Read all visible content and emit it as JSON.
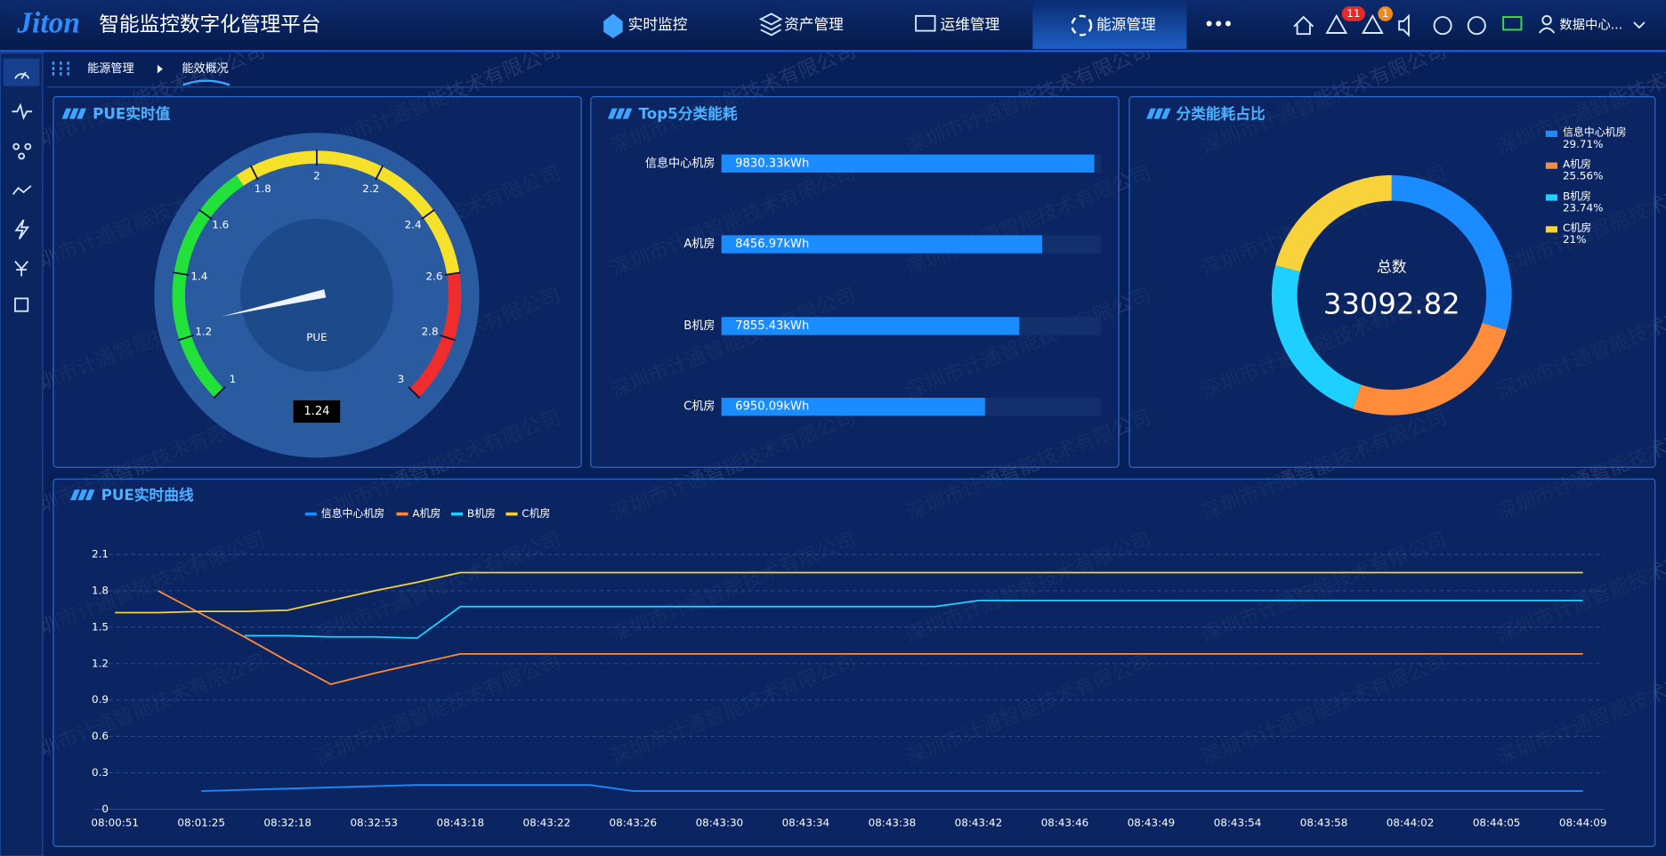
{
  "header": {
    "logo": "Jiton",
    "title": "智能监控数字化管理平台",
    "nav": [
      "实时监控",
      "资产管理",
      "运维管理",
      "能源管理"
    ],
    "more": "•••",
    "badges": [
      11,
      1
    ],
    "user": "数据中心..."
  },
  "breadcrumb": [
    "能源管理",
    "能效概况"
  ],
  "watermark": "深圳市计通智能技术有限公司",
  "chart_data": [
    {
      "type": "gauge",
      "title": "PUE实时值",
      "label": "PUE",
      "value": 1.24,
      "range": [
        1,
        3
      ],
      "ticks": [
        1,
        1.2,
        1.4,
        1.6,
        1.8,
        2,
        2.2,
        2.4,
        2.6,
        2.8,
        3
      ],
      "bands": [
        {
          "to": 1.75,
          "color": "#22e23a"
        },
        {
          "to": 2.6,
          "color": "#f5e12a"
        },
        {
          "to": 3,
          "color": "#f02d2d"
        }
      ]
    },
    {
      "type": "bar",
      "orientation": "horizontal",
      "title": "Top5分类能耗",
      "categories": [
        "信息中心机房",
        "A机房",
        "B机房",
        "C机房"
      ],
      "values": [
        9830.33,
        8456.97,
        7855.43,
        6950.09
      ],
      "value_labels": [
        "9830.33kWh",
        "8456.97kWh",
        "7855.43kWh",
        "6950.09kWh"
      ],
      "xlim": [
        0,
        10000
      ],
      "color": "#1a8cff",
      "track_color": "#14306c"
    },
    {
      "type": "pie",
      "title": "分类能耗占比",
      "categories": [
        "信息中心机房",
        "A机房",
        "B机房",
        "C机房"
      ],
      "values": [
        29.71,
        25.56,
        23.74,
        21
      ],
      "value_labels": [
        "29.71%",
        "25.56%",
        "23.74%",
        "21%"
      ],
      "colors": [
        "#1a8cff",
        "#ff8c3a",
        "#1ed0ff",
        "#f7d23a"
      ],
      "center_label": "总数",
      "total": 33092.82,
      "legend": "top-right"
    },
    {
      "type": "line",
      "title": "PUE实时曲线",
      "categories": [
        "08:00:51",
        null,
        "08:01:25",
        null,
        "08:32:18",
        null,
        "08:32:53",
        null,
        "08:43:18",
        null,
        "08:43:22",
        null,
        "08:43:26",
        null,
        "08:43:30",
        null,
        "08:43:34",
        null,
        "08:43:38",
        null,
        "08:43:42",
        null,
        "08:43:46",
        null,
        "08:43:49",
        null,
        "08:43:54",
        null,
        "08:43:58",
        null,
        "08:44:02",
        null,
        "08:44:05",
        null,
        "08:44:09"
      ],
      "series": [
        {
          "name": "信息中心机房",
          "color": "#1a8cff",
          "values": [
            null,
            null,
            0.15,
            0.16,
            0.17,
            0.18,
            0.19,
            0.2,
            0.2,
            0.2,
            0.2,
            0.2,
            0.15,
            0.15,
            0.15,
            0.15,
            0.15,
            0.15,
            0.15,
            0.15,
            0.15,
            0.15,
            0.15,
            0.15,
            0.15,
            0.15,
            0.15,
            0.15,
            0.15,
            0.15,
            0.15,
            0.15,
            0.15,
            0.15,
            0.15
          ]
        },
        {
          "name": "A机房",
          "color": "#ff8c3a",
          "values": [
            null,
            1.8,
            1.61,
            1.42,
            1.22,
            1.03,
            1.12,
            1.2,
            1.28,
            1.28,
            1.28,
            1.28,
            1.28,
            1.28,
            1.28,
            1.28,
            1.28,
            1.28,
            1.28,
            1.28,
            1.28,
            1.28,
            1.28,
            1.28,
            1.28,
            1.28,
            1.28,
            1.28,
            1.28,
            1.28,
            1.28,
            1.28,
            1.28,
            1.28,
            1.28
          ]
        },
        {
          "name": "B机房",
          "color": "#1ed0ff",
          "values": [
            null,
            null,
            null,
            1.43,
            1.43,
            1.42,
            1.42,
            1.41,
            1.67,
            1.67,
            1.67,
            1.67,
            1.67,
            1.67,
            1.67,
            1.67,
            1.67,
            1.67,
            1.67,
            1.67,
            1.72,
            1.72,
            1.72,
            1.72,
            1.72,
            1.72,
            1.72,
            1.72,
            1.72,
            1.72,
            1.72,
            1.72,
            1.72,
            1.72,
            1.72
          ]
        },
        {
          "name": "C机房",
          "color": "#f7d23a",
          "values": [
            1.62,
            1.62,
            1.63,
            1.63,
            1.64,
            1.72,
            1.8,
            1.87,
            1.95,
            1.95,
            1.95,
            1.95,
            1.95,
            1.95,
            1.95,
            1.95,
            1.95,
            1.95,
            1.95,
            1.95,
            1.95,
            1.95,
            1.95,
            1.95,
            1.95,
            1.95,
            1.95,
            1.95,
            1.95,
            1.95,
            1.95,
            1.95,
            1.95,
            1.95,
            1.95
          ]
        }
      ],
      "ylim": [
        0,
        2.1
      ],
      "yticks": [
        0,
        0.3,
        0.6,
        0.9,
        1.2,
        1.5,
        1.8,
        2.1
      ],
      "grid": true,
      "legend": "top-left"
    }
  ]
}
